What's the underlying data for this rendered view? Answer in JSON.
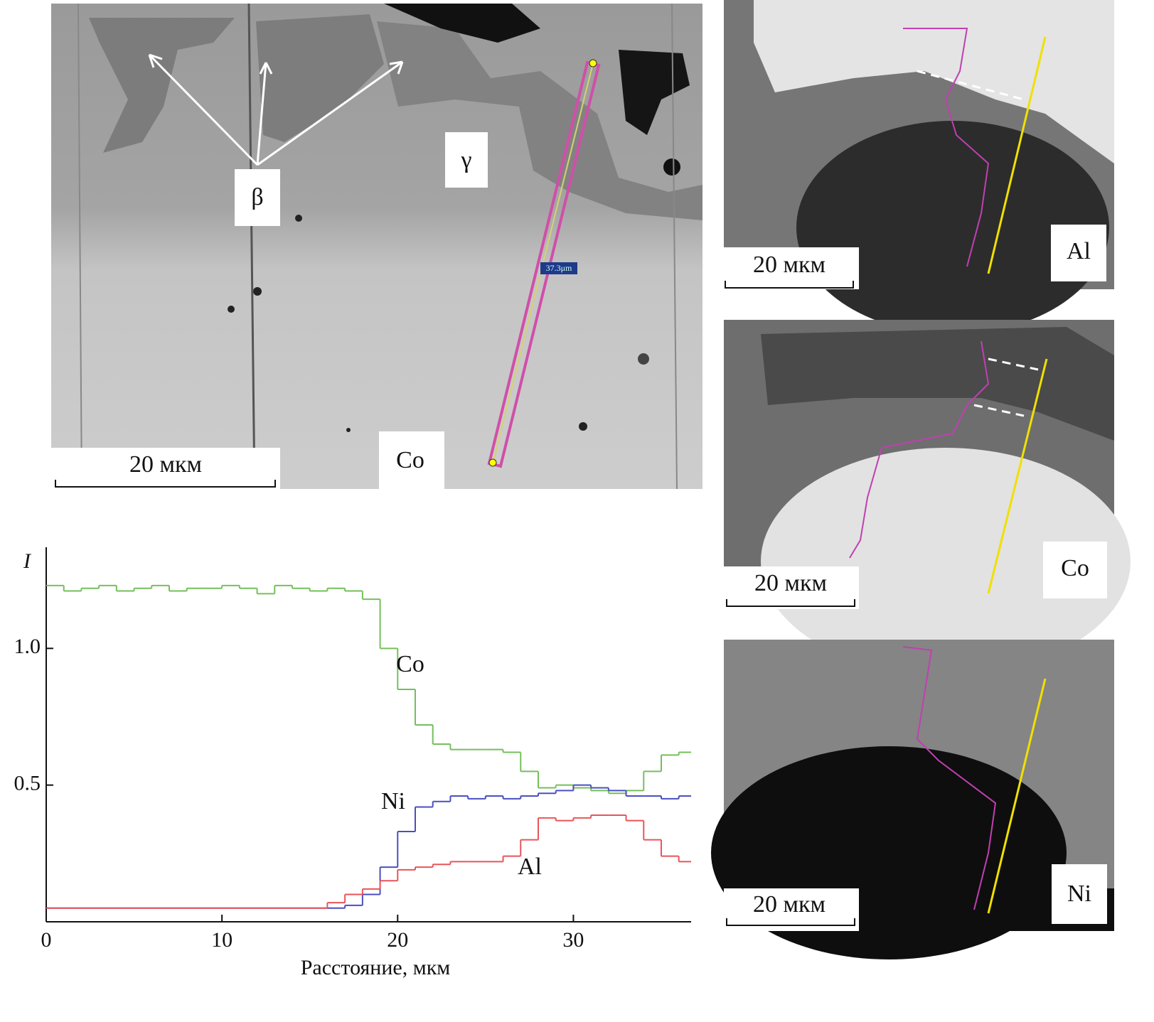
{
  "main_image": {
    "phase_labels": [
      "β",
      "γ"
    ],
    "element": "Co",
    "scale_bar": "20 мкм",
    "line_length": "37.3μm"
  },
  "maps": [
    {
      "element": "Al",
      "scale_bar": "20 мкм"
    },
    {
      "element": "Co",
      "scale_bar": "20 мкм"
    },
    {
      "element": "Ni",
      "scale_bar": "20 мкм"
    }
  ],
  "chart_data": {
    "type": "line",
    "y_label": "I",
    "x_label": "Расстояние, мкм",
    "x": [
      0,
      1,
      2,
      3,
      4,
      5,
      6,
      7,
      8,
      9,
      10,
      11,
      12,
      13,
      14,
      15,
      16,
      17,
      18,
      19,
      20,
      21,
      22,
      23,
      24,
      25,
      26,
      27,
      28,
      29,
      30,
      31,
      32,
      33,
      34,
      35,
      36
    ],
    "series": [
      {
        "name": "Co",
        "color": "#74c05a",
        "values": [
          1.23,
          1.21,
          1.22,
          1.23,
          1.21,
          1.22,
          1.23,
          1.21,
          1.22,
          1.22,
          1.23,
          1.22,
          1.2,
          1.23,
          1.22,
          1.21,
          1.22,
          1.21,
          1.18,
          1.0,
          0.85,
          0.72,
          0.65,
          0.63,
          0.63,
          0.63,
          0.62,
          0.55,
          0.49,
          0.5,
          0.49,
          0.48,
          0.47,
          0.48,
          0.55,
          0.61,
          0.62
        ]
      },
      {
        "name": "Ni",
        "color": "#4a4fc0",
        "values": [
          0.05,
          0.05,
          0.05,
          0.05,
          0.05,
          0.05,
          0.05,
          0.05,
          0.05,
          0.05,
          0.05,
          0.05,
          0.05,
          0.05,
          0.05,
          0.05,
          0.05,
          0.06,
          0.1,
          0.2,
          0.33,
          0.42,
          0.44,
          0.46,
          0.45,
          0.46,
          0.45,
          0.46,
          0.47,
          0.48,
          0.5,
          0.49,
          0.48,
          0.46,
          0.46,
          0.45,
          0.46
        ]
      },
      {
        "name": "Al",
        "color": "#e8555a",
        "values": [
          0.05,
          0.05,
          0.05,
          0.05,
          0.05,
          0.05,
          0.05,
          0.05,
          0.05,
          0.05,
          0.05,
          0.05,
          0.05,
          0.05,
          0.05,
          0.05,
          0.07,
          0.1,
          0.12,
          0.15,
          0.19,
          0.2,
          0.21,
          0.22,
          0.22,
          0.22,
          0.24,
          0.3,
          0.38,
          0.37,
          0.38,
          0.39,
          0.39,
          0.37,
          0.3,
          0.24,
          0.22
        ]
      }
    ],
    "xlim": [
      0,
      36.7
    ],
    "ylim": [
      0,
      1.37
    ],
    "xticks": [
      0,
      10,
      20,
      30
    ],
    "yticks": [
      0.5,
      {
        "value": 1,
        "label": "1.0"
      }
    ]
  }
}
